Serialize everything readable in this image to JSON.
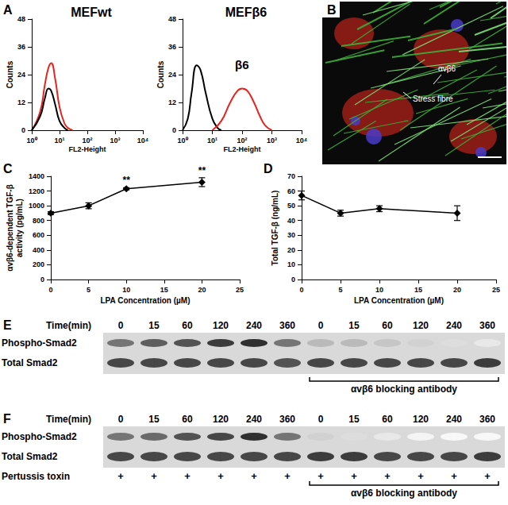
{
  "chart_data": [
    {
      "panel": "A",
      "type": "line",
      "title": "MEFwt",
      "xlabel": "FL2-Height",
      "ylabel": "Counts",
      "log": "x",
      "grid": false,
      "xlim": [
        1,
        10000
      ],
      "xticks": [
        {
          "value": 1,
          "label": "10⁰"
        },
        {
          "value": 10,
          "label": "10¹"
        },
        {
          "value": 100,
          "label": "10²"
        },
        {
          "value": 1000,
          "label": "10³"
        },
        {
          "value": 10000,
          "label": "10⁴"
        }
      ],
      "ylim": [
        0,
        48
      ],
      "yticks": [
        0,
        12,
        24,
        36,
        48
      ],
      "series": [
        {
          "color": "#e8231e",
          "x": [
            1,
            2,
            3,
            4,
            5,
            7,
            10,
            15,
            20,
            30
          ],
          "values": [
            0,
            8,
            20,
            27,
            29,
            22,
            10,
            3,
            1,
            0
          ]
        },
        {
          "color": "#000000",
          "x": [
            1,
            2,
            3,
            4,
            5,
            7,
            10,
            15,
            20
          ],
          "values": [
            0,
            6,
            14,
            18,
            17,
            11,
            4,
            1,
            0
          ]
        }
      ]
    },
    {
      "panel": "A",
      "type": "line",
      "title": "MEFβ6",
      "xlabel": "FL2-Height",
      "ylabel": "Counts",
      "log": "x",
      "grid": false,
      "annotations": [
        "β6"
      ],
      "xlim": [
        1,
        10000
      ],
      "xticks": [
        {
          "value": 1,
          "label": "10⁰"
        },
        {
          "value": 10,
          "label": "10¹"
        },
        {
          "value": 100,
          "label": "10²"
        },
        {
          "value": 1000,
          "label": "10³"
        },
        {
          "value": 10000,
          "label": "10⁴"
        }
      ],
      "ylim": [
        0,
        48
      ],
      "yticks": [
        0,
        12,
        24,
        36,
        48
      ],
      "series": [
        {
          "color": "#000000",
          "x": [
            1,
            1.5,
            2,
            3,
            4,
            6,
            10,
            15,
            20
          ],
          "values": [
            0,
            5,
            16,
            28,
            26,
            16,
            5,
            1,
            0
          ]
        },
        {
          "color": "#e8231e",
          "x": [
            10,
            20,
            40,
            70,
            100,
            150,
            250,
            400,
            600,
            1000
          ],
          "values": [
            0,
            4,
            12,
            17,
            18,
            17,
            12,
            6,
            2,
            0
          ]
        }
      ]
    },
    {
      "panel": "C",
      "type": "line",
      "xlabel": "LPA Concentration (µM)",
      "ylabel": "αvβ6-dependent TGF-β activity (pg/mL)",
      "grid": false,
      "marker": "diamond",
      "color": "#000000",
      "xlim": [
        0,
        25
      ],
      "xticks": [
        0,
        5,
        10,
        15,
        20,
        25
      ],
      "ylim": [
        0,
        1400
      ],
      "yticks": [
        0,
        200,
        400,
        600,
        800,
        1000,
        1200,
        1400
      ],
      "x": [
        0,
        5,
        10,
        20
      ],
      "values": [
        900,
        1000,
        1230,
        1320
      ],
      "errors": [
        20,
        40,
        15,
        60
      ],
      "significance": [
        null,
        null,
        "**",
        "**"
      ]
    },
    {
      "panel": "D",
      "type": "line",
      "xlabel": "LPA Concentration (µM)",
      "ylabel": "Total TGF-β (ng/mL)",
      "grid": false,
      "marker": "diamond",
      "color": "#000000",
      "xlim": [
        0,
        25
      ],
      "xticks": [
        0,
        5,
        10,
        15,
        20,
        25
      ],
      "ylim": [
        0,
        70
      ],
      "yticks": [
        0,
        10,
        20,
        30,
        40,
        50,
        60,
        70
      ],
      "x": [
        0,
        5,
        10,
        20
      ],
      "values": [
        57,
        45,
        48,
        45
      ],
      "errors": [
        3,
        2,
        2,
        5
      ]
    }
  ],
  "image": {
    "panel": "B",
    "annotations": [
      "αvβ6",
      "Stress fibre"
    ]
  },
  "blots": [
    {
      "panel": "E",
      "time_label": "Time(min)",
      "times": [
        0,
        15,
        60,
        120,
        240,
        360,
        0,
        15,
        60,
        120,
        240,
        360
      ],
      "rows": [
        {
          "label": "Phospho-Smad2",
          "bands": [
            0.6,
            0.7,
            0.75,
            0.85,
            0.9,
            0.6,
            0.3,
            0.3,
            0.25,
            0.2,
            0.15,
            0.1
          ]
        },
        {
          "label": "Total Smad2",
          "bands": [
            0.8,
            0.8,
            0.8,
            0.8,
            0.8,
            0.75,
            0.8,
            0.8,
            0.8,
            0.8,
            0.8,
            0.85
          ]
        }
      ],
      "bracket": "αvβ6 blocking antibody"
    },
    {
      "panel": "F",
      "time_label": "Time(min)",
      "times": [
        0,
        15,
        60,
        120,
        240,
        360,
        0,
        15,
        60,
        120,
        240,
        360
      ],
      "rows": [
        {
          "label": "Phospho-Smad2",
          "bands": [
            0.6,
            0.65,
            0.75,
            0.8,
            0.9,
            0.6,
            0.2,
            0.15,
            0.1,
            0.05,
            0.03,
            0.03
          ]
        },
        {
          "label": "Total Smad2",
          "bands": [
            0.8,
            0.8,
            0.8,
            0.8,
            0.8,
            0.8,
            0.85,
            0.85,
            0.8,
            0.8,
            0.8,
            0.85
          ]
        }
      ],
      "treatment": {
        "label": "Pertussis toxin",
        "marks": [
          "+",
          "+",
          "+",
          "+",
          "+",
          "+",
          "+",
          "+",
          "+",
          "+",
          "+",
          "+"
        ]
      },
      "bracket": "αvβ6 blocking antibody"
    }
  ]
}
